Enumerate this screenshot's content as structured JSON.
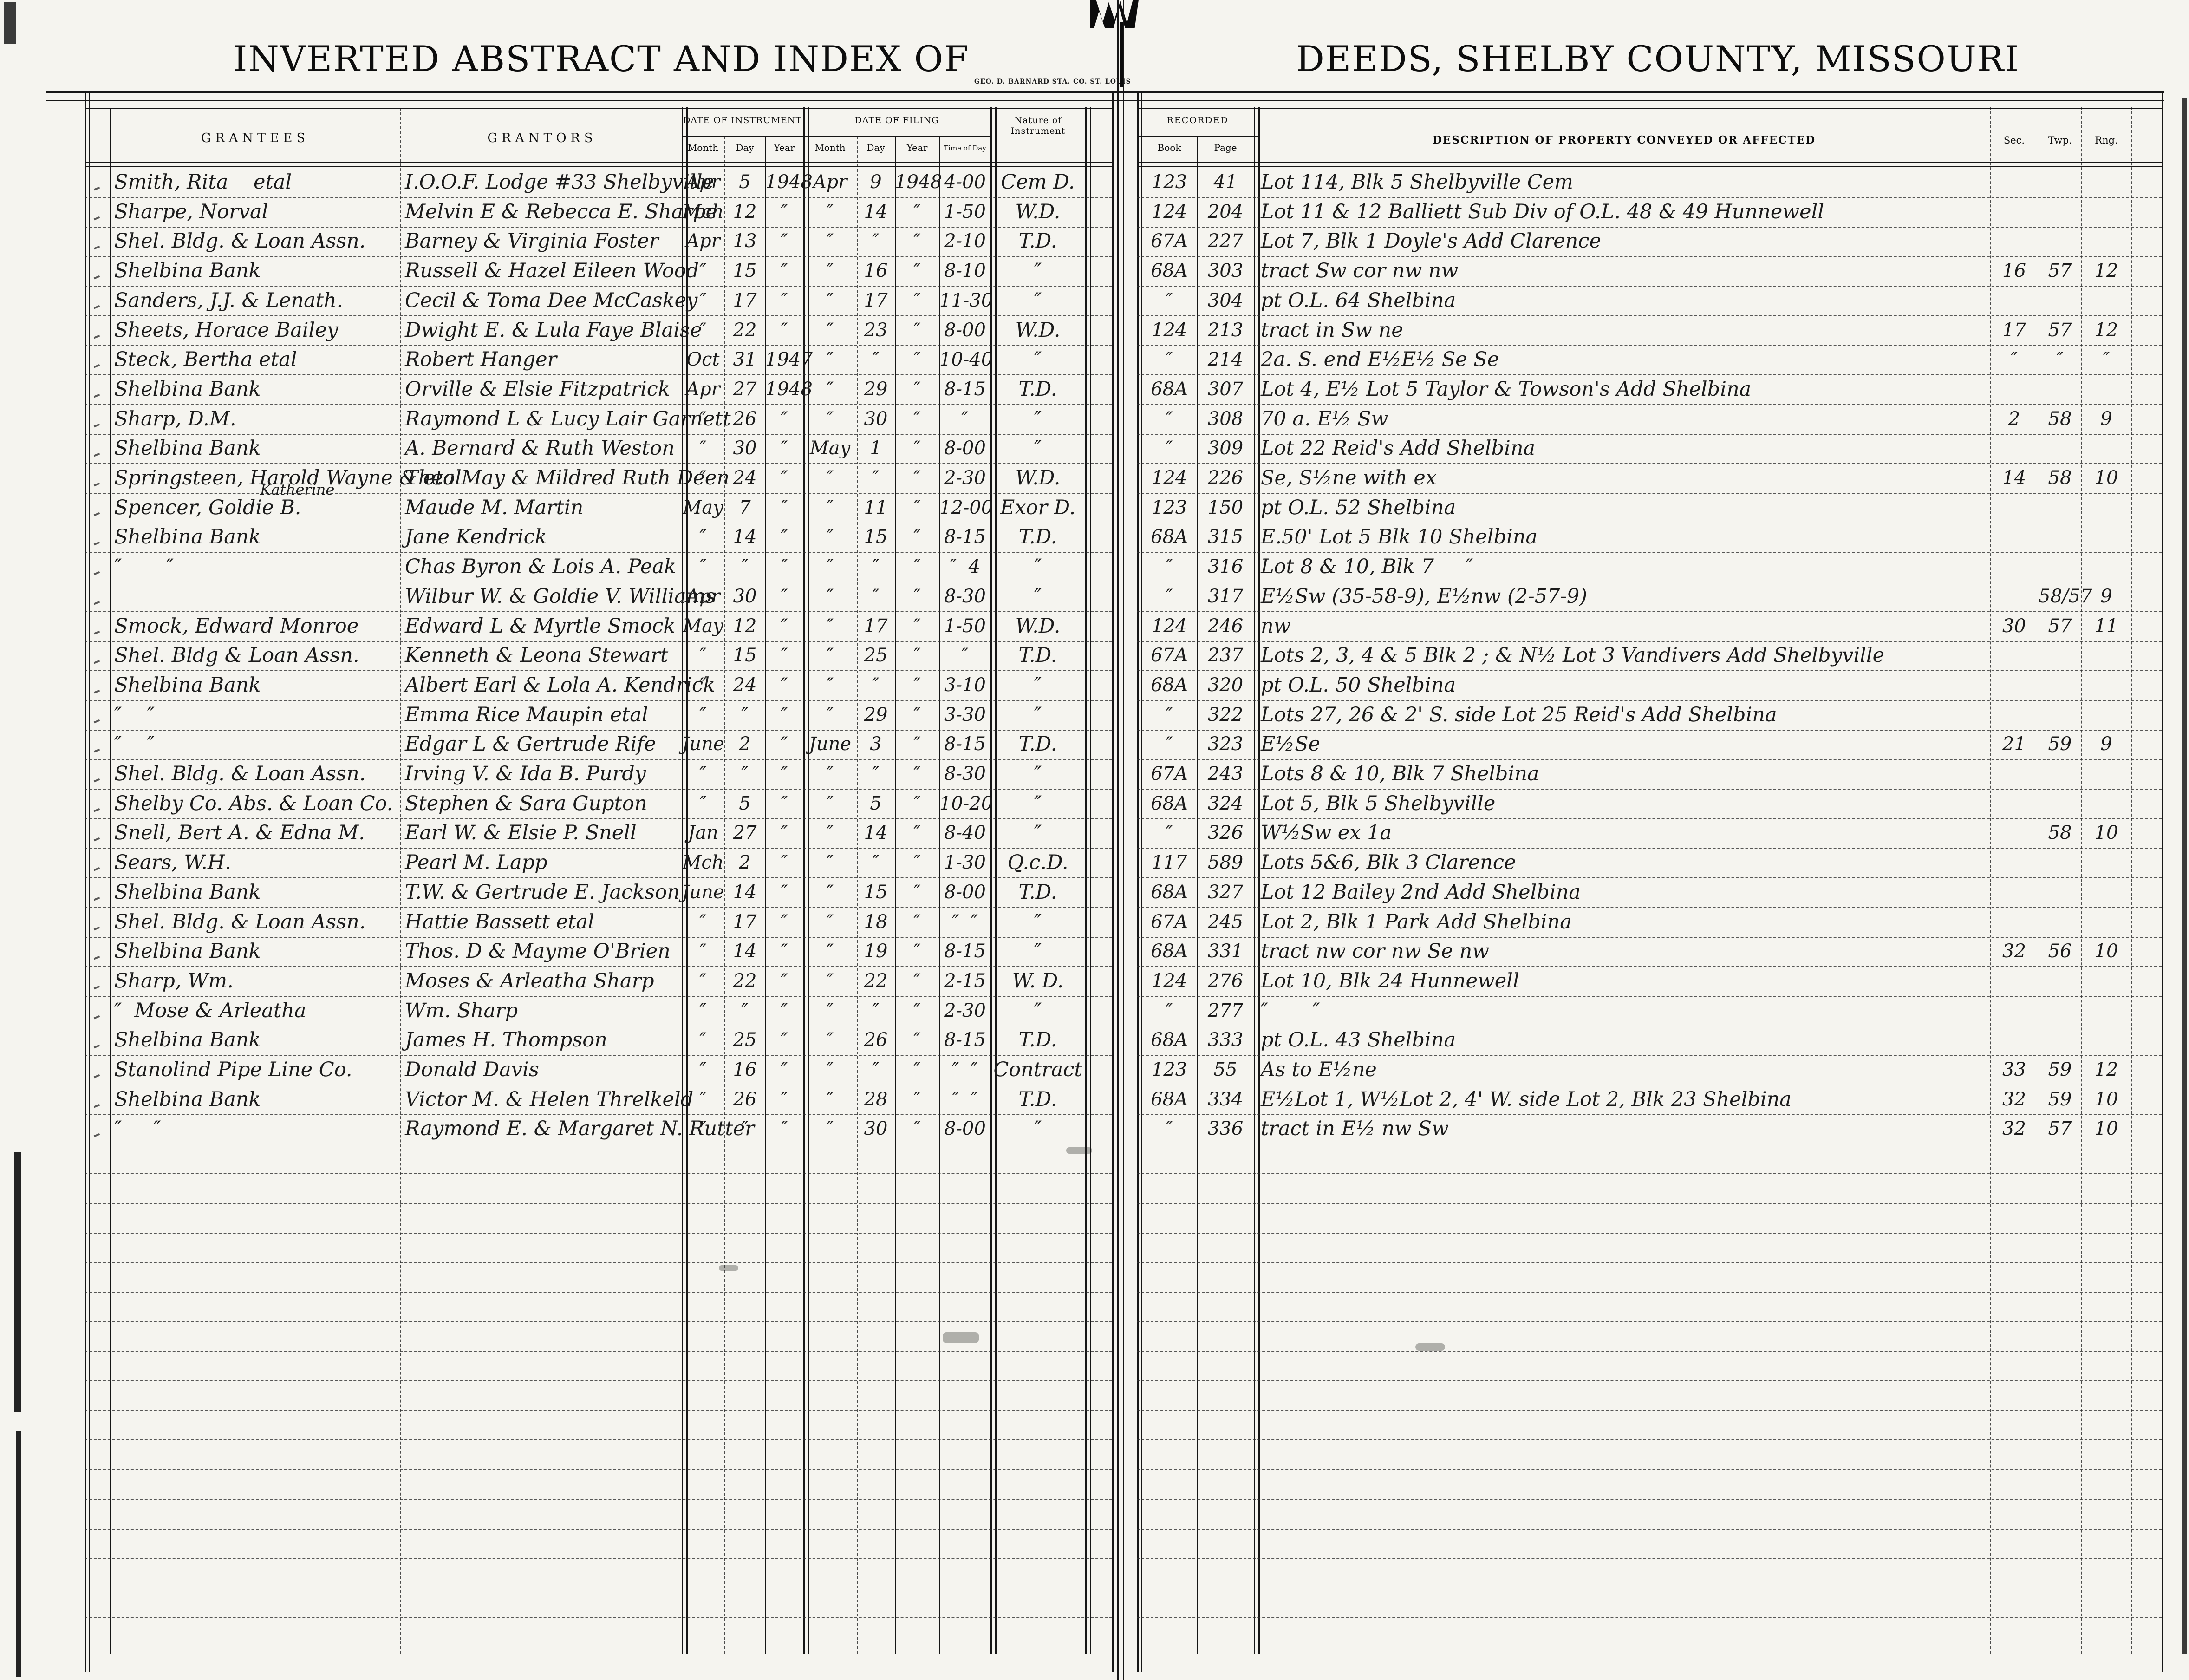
{
  "page": {
    "title_left": "INVERTED ABSTRACT AND INDEX OF",
    "title_right": "DEEDS, SHELBY COUNTY, MISSOURI",
    "imprint": "GEO. D. BARNARD STA. CO. ST. LOUIS"
  },
  "headers": {
    "grantees": "GRANTEES",
    "grantors": "GRANTORS",
    "date_of_instrument": "DATE OF INSTRUMENT",
    "date_of_filing": "DATE OF FILING",
    "month": "Month",
    "day": "Day",
    "year": "Year",
    "time_of_day": "Time of Day",
    "nature": "Nature of Instrument",
    "recorded": "RECORDED",
    "book": "Book",
    "page": "Page",
    "description": "DESCRIPTION OF PROPERTY CONVEYED OR AFFECTED",
    "sec": "Sec.",
    "twp": "Twp.",
    "rng": "Rng."
  },
  "rows": [
    {
      "g": "Smith, Rita    etal",
      "gr": "I.O.O.F. Lodge #33 Shelbyville",
      "im": "Apr",
      "id": "5",
      "iy": "1948",
      "fm": "Apr",
      "fd": "9",
      "fy": "1948",
      "t": "4-00",
      "n": "Cem D.",
      "bk": "123",
      "pg": "41",
      "d": "Lot 114, Blk 5  Shelbyville Cem"
    },
    {
      "g": "Sharpe, Norval",
      "gr": "Melvin E & Rebecca E. Sharpe",
      "im": "Mch",
      "id": "12",
      "iy": "″",
      "fm": "″",
      "fd": "14",
      "fy": "″",
      "t": "1-50",
      "n": "W.D.",
      "bk": "124",
      "pg": "204",
      "d": "Lot 11 & 12  Balliett Sub Div of O.L. 48 & 49  Hunnewell"
    },
    {
      "g": "Shel. Bldg. & Loan Assn.",
      "gr": "Barney & Virginia Foster",
      "im": "Apr",
      "id": "13",
      "iy": "″",
      "fm": "″",
      "fd": "″",
      "fy": "″",
      "t": "2-10",
      "n": "T.D.",
      "bk": "67A",
      "pg": "227",
      "d": "Lot 7, Blk 1  Doyle's Add  Clarence"
    },
    {
      "g": "Shelbina Bank",
      "gr": "Russell & Hazel Eileen Wood",
      "im": "″",
      "id": "15",
      "iy": "″",
      "fm": "″",
      "fd": "16",
      "fy": "″",
      "t": "8-10",
      "n": "″",
      "bk": "68A",
      "pg": "303",
      "d": "tract Sw cor nw nw",
      "sec": "16",
      "twp": "57",
      "rng": "12"
    },
    {
      "g": "Sanders, J.J. & Lenath.",
      "gr": "Cecil & Toma Dee McCaskey",
      "im": "″",
      "id": "17",
      "iy": "″",
      "fm": "″",
      "fd": "17",
      "fy": "″",
      "t": "11-30",
      "n": "″",
      "bk": "″",
      "pg": "304",
      "d": "pt O.L. 64  Shelbina"
    },
    {
      "g": "Sheets, Horace Bailey",
      "gr": "Dwight E. & Lula Faye Blaise",
      "im": "″",
      "id": "22",
      "iy": "″",
      "fm": "″",
      "fd": "23",
      "fy": "″",
      "t": "8-00",
      "n": "W.D.",
      "bk": "124",
      "pg": "213",
      "d": "tract in Sw ne",
      "sec": "17",
      "twp": "57",
      "rng": "12"
    },
    {
      "g": "Steck, Bertha etal",
      "gr": "Robert Hanger",
      "im": "Oct",
      "id": "31",
      "iy": "1947",
      "fm": "″",
      "fd": "″",
      "fy": "″",
      "t": "10-40",
      "n": "″",
      "bk": "″",
      "pg": "214",
      "d": "2a. S. end E½E½ Se Se",
      "sec": "″",
      "twp": "″",
      "rng": "″"
    },
    {
      "g": "Shelbina Bank",
      "gr": "Orville & Elsie Fitzpatrick",
      "im": "Apr",
      "id": "27",
      "iy": "1948",
      "fm": "″",
      "fd": "29",
      "fy": "″",
      "t": "8-15",
      "n": "T.D.",
      "bk": "68A",
      "pg": "307",
      "d": "Lot 4, E½ Lot 5  Taylor & Towson's Add  Shelbina"
    },
    {
      "g": "Sharp, D.M.",
      "gr": "Raymond L & Lucy Lair Garnett",
      "im": "″",
      "id": "26",
      "iy": "″",
      "fm": "″",
      "fd": "30",
      "fy": "″",
      "t": "″",
      "n": "″",
      "bk": "″",
      "pg": "308",
      "d": "70 a. E½ Sw",
      "sec": "2",
      "twp": "58",
      "rng": "9"
    },
    {
      "g": "Shelbina Bank",
      "gr": "A. Bernard & Ruth Weston",
      "im": "″",
      "id": "30",
      "iy": "″",
      "fm": "May",
      "fd": "1",
      "fy": "″",
      "t": "8-00",
      "n": "″",
      "bk": "″",
      "pg": "309",
      "d": "Lot 22   Reid's Add  Shelbina"
    },
    {
      "g": "Springsteen, Harold Wayne & etal",
      "gr": "Theo May & Mildred Ruth Deen",
      "im": "″",
      "id": "24",
      "iy": "″",
      "fm": "″",
      "fd": "″",
      "fy": "″",
      "t": "2-30",
      "n": "W.D.",
      "bk": "124",
      "pg": "226",
      "d": "Se, S½ne with ex",
      "sec": "14",
      "twp": "58",
      "rng": "10"
    },
    {
      "g": "Spencer, Goldie B.",
      "gs": "Katherine",
      "gr": "Maude M. Martin",
      "im": "May",
      "id": "7",
      "iy": "″",
      "fm": "″",
      "fd": "11",
      "fy": "″",
      "t": "12-00",
      "n": "Exor D.",
      "bk": "123",
      "pg": "150",
      "d": "pt O.L. 52  Shelbina"
    },
    {
      "g": "Shelbina Bank",
      "gr": "Jane Kendrick",
      "im": "″",
      "id": "14",
      "iy": "″",
      "fm": "″",
      "fd": "15",
      "fy": "″",
      "t": "8-15",
      "n": "T.D.",
      "bk": "68A",
      "pg": "315",
      "d": "E.50' Lot 5   Blk 10  Shelbina"
    },
    {
      "g": "″       ″",
      "gr": "Chas Byron & Lois A. Peak",
      "im": "″",
      "id": "″",
      "iy": "″",
      "fm": "″",
      "fd": "″",
      "fy": "″",
      "t": "″  4",
      "n": "″",
      "bk": "″",
      "pg": "316",
      "d": "Lot 8 & 10,  Blk 7     ″"
    },
    {
      "g": "",
      "gr": "Wilbur W. & Goldie V. Williams",
      "im": "Apr",
      "id": "30",
      "iy": "″",
      "fm": "″",
      "fd": "″",
      "fy": "″",
      "t": "8-30",
      "n": "″",
      "bk": "″",
      "pg": "317",
      "d": "E½Sw (35-58-9), E½nw (2-57-9)",
      "twp": "58/57",
      "rng": "9"
    },
    {
      "g": "Smock, Edward Monroe",
      "gr": "Edward L & Myrtle Smock",
      "im": "May",
      "id": "12",
      "iy": "″",
      "fm": "″",
      "fd": "17",
      "fy": "″",
      "t": "1-50",
      "n": "W.D.",
      "bk": "124",
      "pg": "246",
      "d": "nw",
      "sec": "30",
      "twp": "57",
      "rng": "11"
    },
    {
      "g": "Shel. Bldg & Loan Assn.",
      "gr": "Kenneth & Leona Stewart",
      "im": "″",
      "id": "15",
      "iy": "″",
      "fm": "″",
      "fd": "25",
      "fy": "″",
      "t": "″",
      "n": "T.D.",
      "bk": "67A",
      "pg": "237",
      "d": "Lots 2, 3, 4 & 5  Blk 2 ;  &  N½ Lot 3 Vandivers Add  Shelbyville"
    },
    {
      "g": "Shelbina Bank",
      "gr": "Albert Earl & Lola A. Kendrick",
      "im": "″",
      "id": "24",
      "iy": "″",
      "fm": "″",
      "fd": "″",
      "fy": "″",
      "t": "3-10",
      "n": "″",
      "bk": "68A",
      "pg": "320",
      "d": "pt O.L. 50  Shelbina"
    },
    {
      "g": "″    ″",
      "gr": "Emma Rice Maupin etal",
      "im": "″",
      "id": "″",
      "iy": "″",
      "fm": "″",
      "fd": "29",
      "fy": "″",
      "t": "3-30",
      "n": "″",
      "bk": "″",
      "pg": "322",
      "d": "Lots 27, 26 & 2' S. side Lot 25  Reid's Add  Shelbina"
    },
    {
      "g": "″    ″",
      "gr": "Edgar L & Gertrude Rife",
      "im": "June",
      "id": "2",
      "iy": "″",
      "fm": "June",
      "fd": "3",
      "fy": "″",
      "t": "8-15",
      "n": "T.D.",
      "bk": "″",
      "pg": "323",
      "d": "E½Se",
      "sec": "21",
      "twp": "59",
      "rng": "9"
    },
    {
      "g": "Shel. Bldg. & Loan Assn.",
      "gr": "Irving V. & Ida B. Purdy",
      "im": "″",
      "id": "″",
      "iy": "″",
      "fm": "″",
      "fd": "″",
      "fy": "″",
      "t": "8-30",
      "n": "″",
      "bk": "67A",
      "pg": "243",
      "d": "Lots 8 & 10,  Blk 7  Shelbina"
    },
    {
      "g": "Shelby Co. Abs. & Loan Co.",
      "gr": "Stephen & Sara Gupton",
      "im": "″",
      "id": "5",
      "iy": "″",
      "fm": "″",
      "fd": "5",
      "fy": "″",
      "t": "10-20",
      "n": "″",
      "bk": "68A",
      "pg": "324",
      "d": "Lot 5,  Blk 5    Shelbyville"
    },
    {
      "g": "Snell, Bert A. & Edna M.",
      "gr": "Earl W. & Elsie P. Snell",
      "im": "Jan",
      "id": "27",
      "iy": "″",
      "fm": "″",
      "fd": "14",
      "fy": "″",
      "t": "8-40",
      "n": "″",
      "bk": "″",
      "pg": "326",
      "d": "W½Sw ex 1a",
      "twp": "58",
      "rng": "10"
    },
    {
      "g": "Sears, W.H.",
      "gr": "Pearl M. Lapp",
      "im": "Mch",
      "id": "2",
      "iy": "″",
      "fm": "″",
      "fd": "″",
      "fy": "″",
      "t": "1-30",
      "n": "Q.c.D.",
      "bk": "117",
      "pg": "589",
      "d": "Lots 5&6, Blk 3  Clarence"
    },
    {
      "g": "Shelbina Bank",
      "gr": "T.W. & Gertrude E. Jackson",
      "im": "June",
      "id": "14",
      "iy": "″",
      "fm": "″",
      "fd": "15",
      "fy": "″",
      "t": "8-00",
      "n": "T.D.",
      "bk": "68A",
      "pg": "327",
      "d": "Lot 12  Bailey 2nd Add  Shelbina"
    },
    {
      "g": "Shel. Bldg. & Loan Assn.",
      "gr": "Hattie Bassett etal",
      "im": "″",
      "id": "17",
      "iy": "″",
      "fm": "″",
      "fd": "18",
      "fy": "″",
      "t": "″  ″",
      "n": "″",
      "bk": "67A",
      "pg": "245",
      "d": "Lot 2, Blk 1  Park Add  Shelbina"
    },
    {
      "g": "Shelbina Bank",
      "gr": "Thos. D & Mayme O'Brien",
      "im": "″",
      "id": "14",
      "iy": "″",
      "fm": "″",
      "fd": "19",
      "fy": "″",
      "t": "8-15",
      "n": "″",
      "bk": "68A",
      "pg": "331",
      "d": "tract nw cor nw Se nw",
      "sec": "32",
      "twp": "56",
      "rng": "10"
    },
    {
      "g": "Sharp, Wm.",
      "gr": "Moses & Arleatha Sharp",
      "im": "″",
      "id": "22",
      "iy": "″",
      "fm": "″",
      "fd": "22",
      "fy": "″",
      "t": "2-15",
      "n": "W. D.",
      "bk": "124",
      "pg": "276",
      "d": "Lot 10,  Blk 24  Hunnewell"
    },
    {
      "g": "″  Mose & Arleatha",
      "gr": "Wm. Sharp",
      "im": "″",
      "id": "″",
      "iy": "″",
      "fm": "″",
      "fd": "″",
      "fy": "″",
      "t": "2-30",
      "n": "″",
      "bk": "″",
      "pg": "277",
      "d": "″       ″"
    },
    {
      "g": "Shelbina Bank",
      "gr": "James H. Thompson",
      "im": "″",
      "id": "25",
      "iy": "″",
      "fm": "″",
      "fd": "26",
      "fy": "″",
      "t": "8-15",
      "n": "T.D.",
      "bk": "68A",
      "pg": "333",
      "d": "pt O.L. 43 Shelbina"
    },
    {
      "g": "Stanolind Pipe Line Co.",
      "gr": "Donald Davis",
      "im": "″",
      "id": "16",
      "iy": "″",
      "fm": "″",
      "fd": "″",
      "fy": "″",
      "t": "″  ″",
      "n": "Contract",
      "bk": "123",
      "pg": "55",
      "d": "As to E½ne",
      "sec": "33",
      "twp": "59",
      "rng": "12"
    },
    {
      "g": "Shelbina Bank",
      "gr": "Victor M. & Helen Threlkeld",
      "im": "″",
      "id": "26",
      "iy": "″",
      "fm": "″",
      "fd": "28",
      "fy": "″",
      "t": "″  ″",
      "n": "T.D.",
      "bk": "68A",
      "pg": "334",
      "d": "E½Lot 1, W½Lot 2, 4' W. side Lot 2,  Blk 23  Shelbina",
      "sec": "32",
      "twp": "59",
      "rng": "10"
    },
    {
      "g": "″     ″",
      "gr": "Raymond E. & Margaret N. Rutter",
      "im": "″",
      "id": "″",
      "iy": "″",
      "fm": "″",
      "fd": "30",
      "fy": "″",
      "t": "8-00",
      "n": "″",
      "bk": "″",
      "pg": "336",
      "d": "tract in E½ nw Sw",
      "sec": "32",
      "twp": "57",
      "rng": "10"
    }
  ]
}
